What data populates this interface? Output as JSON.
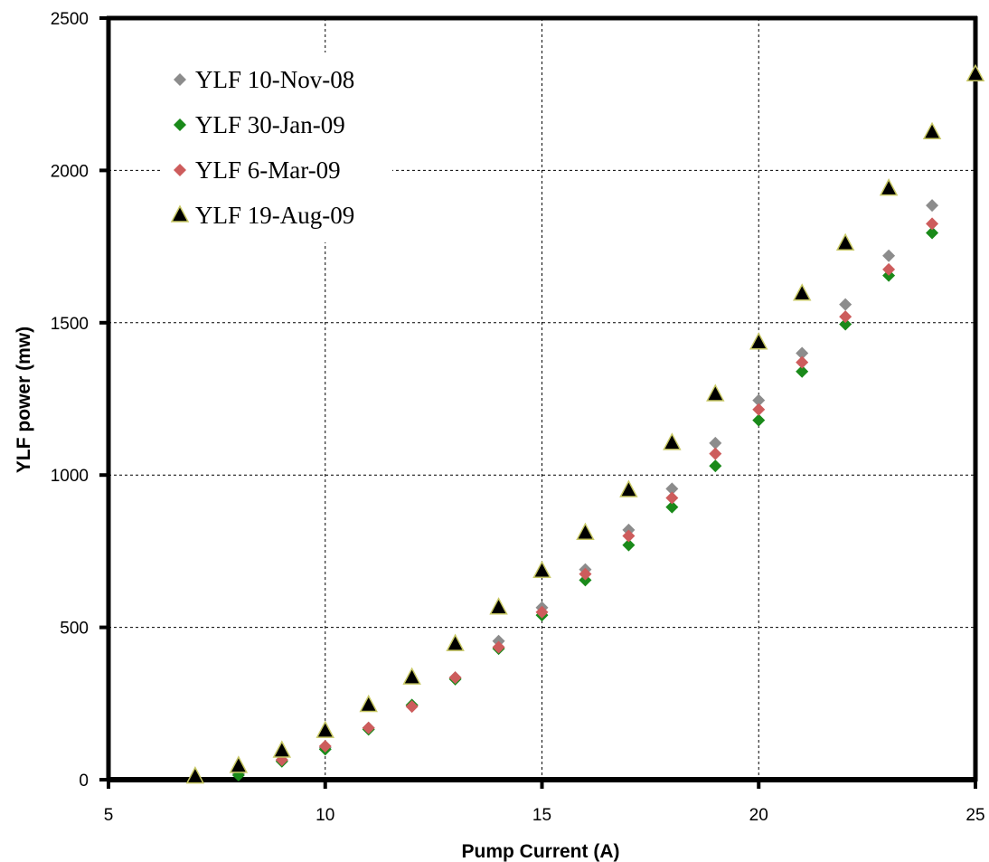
{
  "chart_data": {
    "type": "scatter",
    "title": "",
    "xlabel": "Pump Current (A)",
    "ylabel": "YLF power (mw)",
    "xlim": [
      5,
      25
    ],
    "ylim": [
      0,
      2500
    ],
    "xticks": [
      5,
      10,
      15,
      20,
      25
    ],
    "yticks": [
      0,
      500,
      1000,
      1500,
      2000,
      2500
    ],
    "grid": true,
    "legend_position": "top-left",
    "series": [
      {
        "name": "YLF 10-Nov-08",
        "marker": "diamond",
        "color": "#8c8c8c",
        "x": [
          8,
          9,
          10,
          11,
          12,
          13,
          14,
          15,
          16,
          17,
          18,
          19,
          20,
          21,
          22,
          23,
          24
        ],
        "y": [
          20,
          65,
          105,
          170,
          245,
          335,
          455,
          565,
          690,
          820,
          955,
          1105,
          1245,
          1400,
          1560,
          1720,
          1885
        ]
      },
      {
        "name": "YLF 30-Jan-09",
        "marker": "diamond",
        "color": "#1a8a1a",
        "x": [
          8,
          9,
          10,
          11,
          12,
          13,
          14,
          15,
          16,
          17,
          18,
          19,
          20,
          21,
          22,
          23,
          24
        ],
        "y": [
          15,
          60,
          100,
          165,
          245,
          330,
          430,
          540,
          655,
          770,
          895,
          1030,
          1180,
          1340,
          1495,
          1655,
          1795
        ]
      },
      {
        "name": "YLF 6-Mar-09",
        "marker": "diamond",
        "color": "#cd5c5c",
        "x": [
          9,
          10,
          11,
          12,
          13,
          14,
          15,
          16,
          17,
          18,
          19,
          20,
          21,
          22,
          23,
          24
        ],
        "y": [
          65,
          110,
          170,
          240,
          335,
          435,
          550,
          675,
          800,
          925,
          1070,
          1215,
          1370,
          1520,
          1675,
          1825
        ]
      },
      {
        "name": "YLF 19-Aug-09",
        "marker": "triangle",
        "color": "#000000",
        "edge": "#c8c864",
        "x": [
          7,
          8,
          9,
          10,
          11,
          12,
          13,
          14,
          15,
          16,
          17,
          18,
          19,
          20,
          21,
          22,
          23,
          24,
          25
        ],
        "y": [
          10,
          45,
          95,
          160,
          245,
          335,
          445,
          565,
          685,
          810,
          950,
          1105,
          1265,
          1435,
          1595,
          1760,
          1940,
          2125,
          2315
        ]
      }
    ]
  }
}
